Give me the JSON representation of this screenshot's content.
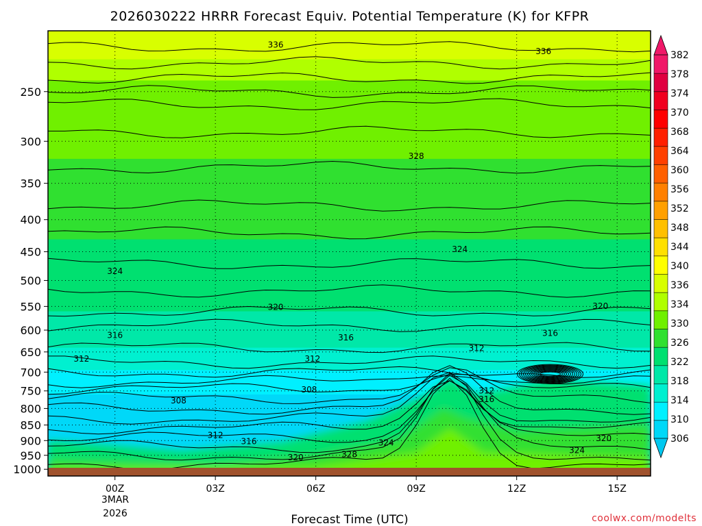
{
  "chart_data": {
    "type": "heatmap",
    "title": "2026030222 HRRR Forecast Equiv. Potential Temperature (K) for KFPR",
    "xlabel": "Forecast Time (UTC)",
    "ylabel": "",
    "x_ticks": [
      "00Z",
      "03Z",
      "06Z",
      "09Z",
      "12Z",
      "15Z"
    ],
    "x_date_label": [
      "3MAR",
      "2026"
    ],
    "x_range_hours": [
      -2,
      16
    ],
    "y_ticks": [
      250,
      300,
      350,
      400,
      450,
      500,
      550,
      600,
      650,
      700,
      750,
      800,
      850,
      900,
      950,
      1000
    ],
    "y_range_hPa": [
      1025,
      200
    ],
    "y_scale": "log",
    "grid": true,
    "colorbar": {
      "levels": [
        306,
        310,
        314,
        318,
        322,
        326,
        330,
        334,
        336,
        340,
        344,
        348,
        352,
        356,
        360,
        364,
        368,
        370,
        374,
        378,
        382
      ],
      "labels": [
        "382",
        "378",
        "374",
        "370",
        "368",
        "364",
        "360",
        "356",
        "352",
        "348",
        "344",
        "340",
        "336",
        "334",
        "330",
        "326",
        "322",
        "318",
        "314",
        "310",
        "306"
      ],
      "colors": [
        "#00d8f8",
        "#00f0ff",
        "#00f0d0",
        "#00e8a8",
        "#00e070",
        "#30e030",
        "#70f000",
        "#b0ff00",
        "#d8ff00",
        "#ffff00",
        "#ffe000",
        "#ffc000",
        "#ffa000",
        "#ff8000",
        "#ff6000",
        "#ff4000",
        "#ff2000",
        "#ff0000",
        "#f00020",
        "#e00040",
        "#f01868"
      ],
      "extend": "both"
    },
    "contour_labels": [
      {
        "value": "336",
        "hour": 4.8,
        "pressure": 210
      },
      {
        "value": "336",
        "hour": 12.8,
        "pressure": 215
      },
      {
        "value": "328",
        "hour": 9.0,
        "pressure": 316
      },
      {
        "value": "324",
        "hour": 0.0,
        "pressure": 482
      },
      {
        "value": "324",
        "hour": 10.3,
        "pressure": 445
      },
      {
        "value": "320",
        "hour": 4.8,
        "pressure": 550
      },
      {
        "value": "320",
        "hour": 14.5,
        "pressure": 548
      },
      {
        "value": "316",
        "hour": 0.0,
        "pressure": 610
      },
      {
        "value": "316",
        "hour": 6.9,
        "pressure": 615
      },
      {
        "value": "316",
        "hour": 13.0,
        "pressure": 605
      },
      {
        "value": "312",
        "hour": -1.0,
        "pressure": 665
      },
      {
        "value": "312",
        "hour": 5.9,
        "pressure": 665
      },
      {
        "value": "312",
        "hour": 10.8,
        "pressure": 640
      },
      {
        "value": "308",
        "hour": 5.8,
        "pressure": 745
      },
      {
        "value": "308",
        "hour": 1.9,
        "pressure": 775
      },
      {
        "value": "312",
        "hour": 11.1,
        "pressure": 748
      },
      {
        "value": "316",
        "hour": 11.1,
        "pressure": 772
      },
      {
        "value": "312",
        "hour": 3.0,
        "pressure": 880
      },
      {
        "value": "316",
        "hour": 4.0,
        "pressure": 900
      },
      {
        "value": "324",
        "hour": 8.1,
        "pressure": 905
      },
      {
        "value": "320",
        "hour": 14.6,
        "pressure": 890
      },
      {
        "value": "324",
        "hour": 13.8,
        "pressure": 930
      },
      {
        "value": "320",
        "hour": 5.4,
        "pressure": 955
      },
      {
        "value": "328",
        "hour": 7.0,
        "pressure": 945
      }
    ]
  },
  "credit": "coolwx.com/modelts"
}
